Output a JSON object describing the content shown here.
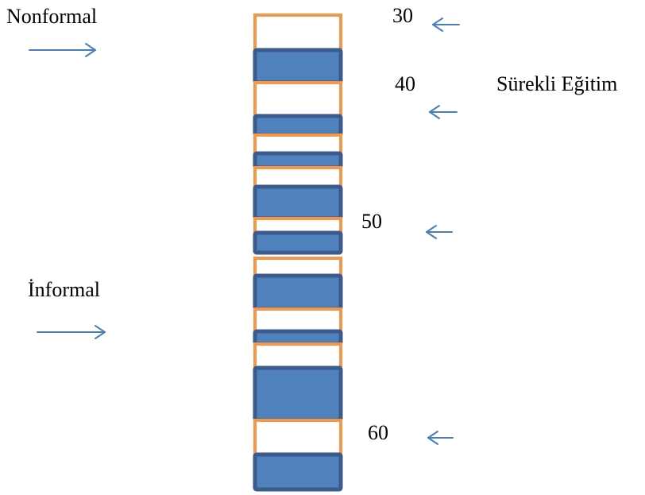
{
  "labels": {
    "nonformal": "Nonformal",
    "informal": "İnformal",
    "surekli_egitim": "Sürekli Eğitim",
    "age_30": "30",
    "age_40": "40",
    "age_50": "50",
    "age_60": "60"
  },
  "colors": {
    "formal_fill": "#4f81bd",
    "formal_stroke": "#3a5b8c",
    "gap_stroke": "#f79646",
    "gap_fill": "#ffffff",
    "arrow": "#4a7ebb"
  }
}
